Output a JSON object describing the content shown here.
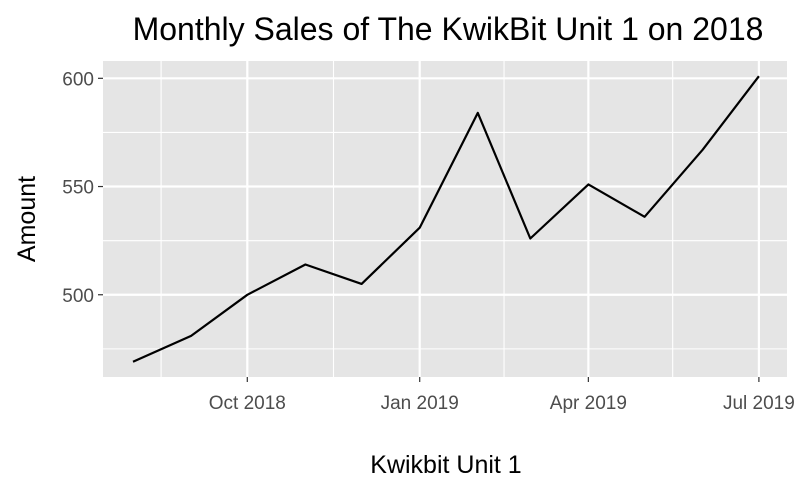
{
  "chart_data": {
    "type": "line",
    "title": "Monthly Sales of The KwikBit Unit 1 on 2018",
    "xlabel": "Kwikbit Unit 1",
    "ylabel": "Amount",
    "x": [
      "2018-08-01",
      "2018-09-01",
      "2018-10-01",
      "2018-11-01",
      "2018-12-01",
      "2019-01-01",
      "2019-02-01",
      "2019-03-01",
      "2019-04-01",
      "2019-05-01",
      "2019-06-01",
      "2019-07-01"
    ],
    "values": [
      469,
      481,
      500,
      514,
      505,
      531,
      584,
      526,
      551,
      536,
      567,
      601
    ],
    "xlim": [
      "2018-07-16",
      "2019-07-16"
    ],
    "ylim": [
      462,
      608
    ],
    "x_ticks": [
      {
        "date": "2018-10-01",
        "label": "Oct 2018"
      },
      {
        "date": "2019-01-01",
        "label": "Jan 2019"
      },
      {
        "date": "2019-04-01",
        "label": "Apr 2019"
      },
      {
        "date": "2019-07-01",
        "label": "Jul 2019"
      }
    ],
    "x_minor_ticks": [
      "2018-08-16",
      "2018-11-16",
      "2019-02-15",
      "2019-05-16"
    ],
    "y_ticks": [
      500,
      550,
      600
    ],
    "y_minor_ticks": [
      475,
      525,
      575
    ],
    "grid": true,
    "line_color": "#000000",
    "panel_background": "#e5e5e5",
    "gridline_color": "#ffffff"
  }
}
